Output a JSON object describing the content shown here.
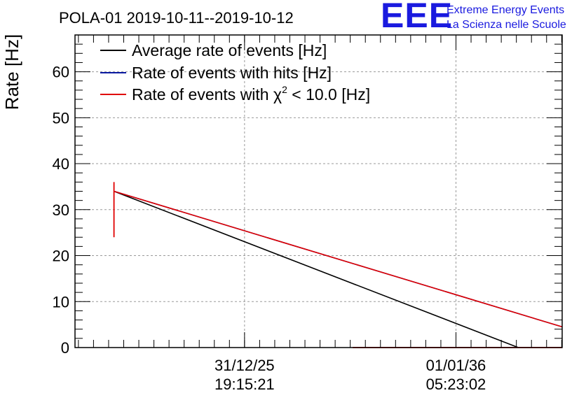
{
  "chart_data": {
    "type": "line",
    "title": "POLA-01 2019-10-11--2019-10-12",
    "ylabel": "Rate [Hz]",
    "xlabel": "",
    "ylim": [
      0,
      68
    ],
    "xlim": [
      0,
      1
    ],
    "y_ticks": [
      0,
      10,
      20,
      30,
      40,
      50,
      60
    ],
    "x_ticks": [
      {
        "pos": 0.348,
        "date": "31/12/25",
        "time": "19:15:21"
      },
      {
        "pos": 0.782,
        "date": "01/01/36",
        "time": "05:23:02"
      }
    ],
    "grid": true,
    "legend_position": "top-left",
    "series": [
      {
        "name": "Average rate of events [Hz]",
        "color": "#000000",
        "x": [
          0.08,
          0.91
        ],
        "values": [
          34,
          0
        ]
      },
      {
        "name": "Rate of events with hits [Hz]",
        "color": "#0a1aa0",
        "x": [
          0.08,
          1.0
        ],
        "values": [
          34,
          4.5
        ]
      },
      {
        "name": "Rate of events with χ² < 10.0 [Hz]",
        "color": "#e00000",
        "x": [
          0.08,
          1.0
        ],
        "values": [
          34,
          4.5
        ],
        "extra_segments": [
          {
            "x": [
              0.08,
              0.08
            ],
            "values": [
              24,
              36
            ]
          },
          {
            "x": [
              0.57,
              1.0
            ],
            "values": [
              0,
              0
            ]
          }
        ]
      }
    ],
    "legend": [
      {
        "label": "Average rate of events [Hz]",
        "color": "#000000"
      },
      {
        "label": "Rate of events with hits [Hz]",
        "color": "#0a1aa0"
      },
      {
        "label_prefix": "Rate of events with χ",
        "label_sup": "2",
        "label_suffix": " < 10.0 [Hz]",
        "color": "#e00000"
      }
    ]
  },
  "logo": {
    "mark": "EEE",
    "line1": "Extreme Energy Events",
    "line2": "La Scienza nelle Scuole",
    "color": "#1a1adf"
  }
}
